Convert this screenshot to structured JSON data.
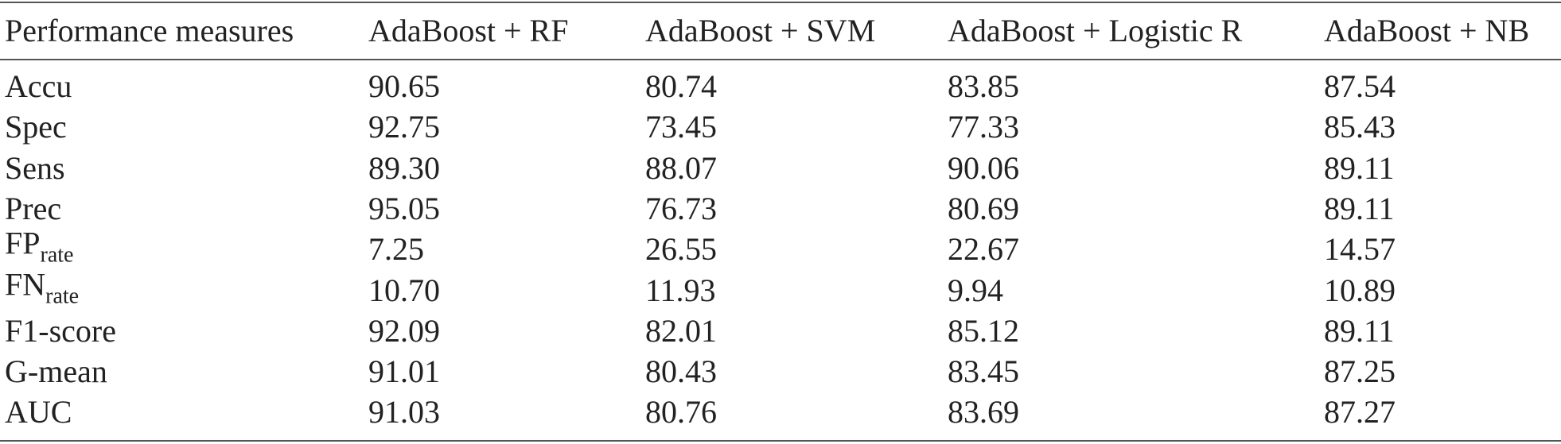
{
  "table": {
    "header": [
      "Performance measures",
      "AdaBoost + RF",
      "AdaBoost + SVM",
      "AdaBoost + Logistic R",
      "AdaBoost + NB"
    ],
    "rows": [
      [
        "Accu",
        "90.65",
        "80.74",
        "83.85",
        "87.54"
      ],
      [
        "Spec",
        "92.75",
        "73.45",
        "77.33",
        "85.43"
      ],
      [
        "Sens",
        "89.30",
        "88.07",
        "90.06",
        "89.11"
      ],
      [
        "Prec",
        "95.05",
        "76.73",
        "80.69",
        "89.11"
      ],
      [
        {
          "text": "FP",
          "sub": "rate"
        },
        "7.25",
        "26.55",
        "22.67",
        "14.57"
      ],
      [
        {
          "text": "FN",
          "sub": "rate"
        },
        "10.70",
        "11.93",
        "9.94",
        "10.89"
      ],
      [
        "F1-score",
        "92.09",
        "82.01",
        "85.12",
        "89.11"
      ],
      [
        "G-mean",
        "91.01",
        "80.43",
        "83.45",
        "87.25"
      ],
      [
        "AUC",
        "91.03",
        "80.76",
        "83.69",
        "87.27"
      ]
    ]
  }
}
